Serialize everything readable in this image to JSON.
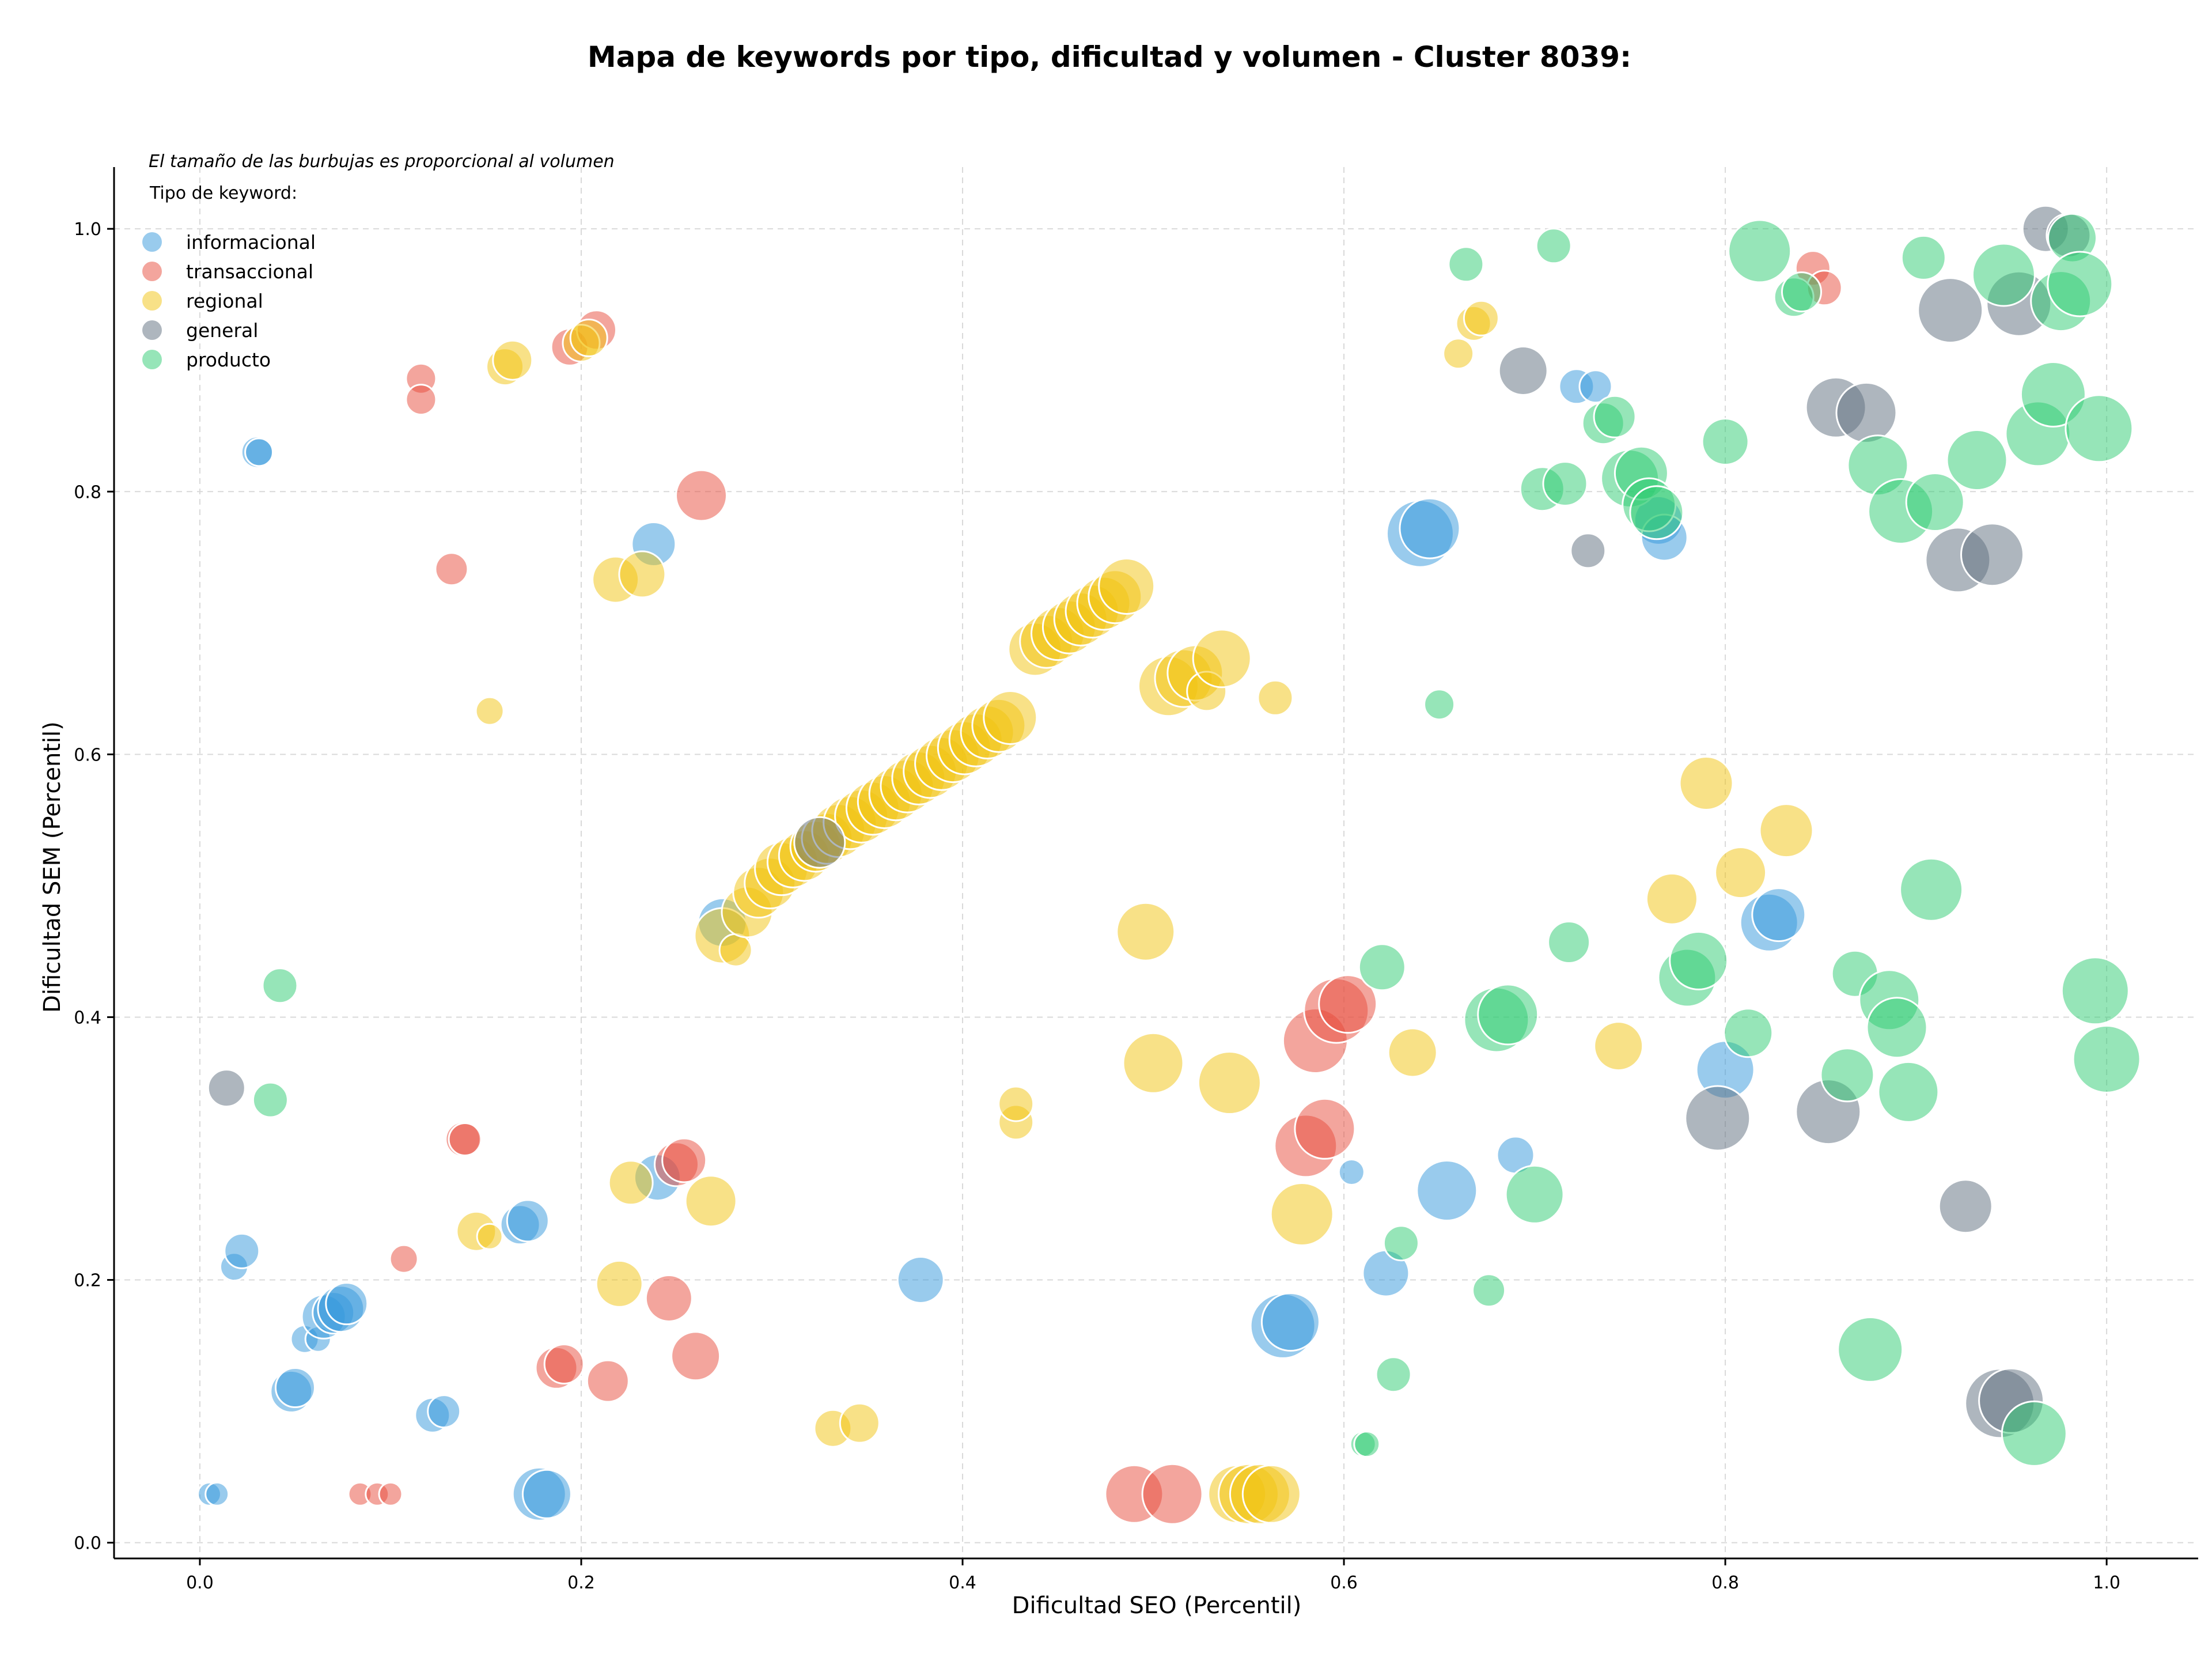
{
  "chart_data": {
    "type": "scatter",
    "title": "Mapa de keywords por tipo, dificultad y volumen - Cluster 8039:",
    "xlabel": "Dificultad SEO (Percentil)",
    "ylabel": "Dificultad SEM (Percentil)",
    "xlim": [
      -0.045,
      1.048
    ],
    "ylim": [
      -0.012,
      1.047
    ],
    "xticks": [
      "0.0",
      "0.2",
      "0.4",
      "0.6",
      "0.8",
      "1.0"
    ],
    "yticks": [
      "0.0",
      "0.2",
      "0.4",
      "0.6",
      "0.8",
      "1.0"
    ],
    "grid": true,
    "annotation": "El tamaño de las burbujas es proporcional al volumen",
    "legend_title": "Tipo de keyword:",
    "legend_position": "top-left",
    "series": [
      {
        "name": "informacional",
        "color": "#3498db",
        "points": [
          [
            0.005,
            0.037,
            20
          ],
          [
            0.009,
            0.037,
            20
          ],
          [
            0.018,
            0.21,
            24
          ],
          [
            0.022,
            0.222,
            30
          ],
          [
            0.03,
            0.83,
            27
          ],
          [
            0.031,
            0.83,
            24
          ],
          [
            0.048,
            0.115,
            36
          ],
          [
            0.05,
            0.118,
            34
          ],
          [
            0.055,
            0.155,
            24
          ],
          [
            0.062,
            0.155,
            22
          ],
          [
            0.065,
            0.172,
            38
          ],
          [
            0.07,
            0.175,
            36
          ],
          [
            0.074,
            0.178,
            40
          ],
          [
            0.077,
            0.182,
            36
          ],
          [
            0.122,
            0.097,
            30
          ],
          [
            0.128,
            0.1,
            28
          ],
          [
            0.168,
            0.242,
            34
          ],
          [
            0.172,
            0.245,
            36
          ],
          [
            0.178,
            0.037,
            46
          ],
          [
            0.182,
            0.037,
            42
          ],
          [
            0.238,
            0.76,
            38
          ],
          [
            0.24,
            0.278,
            40
          ],
          [
            0.274,
            0.472,
            42
          ],
          [
            0.378,
            0.2,
            40
          ],
          [
            0.568,
            0.165,
            56
          ],
          [
            0.572,
            0.168,
            50
          ],
          [
            0.604,
            0.282,
            22
          ],
          [
            0.622,
            0.205,
            40
          ],
          [
            0.654,
            0.268,
            52
          ],
          [
            0.64,
            0.768,
            58
          ],
          [
            0.645,
            0.772,
            52
          ],
          [
            0.69,
            0.295,
            32
          ],
          [
            0.722,
            0.88,
            30
          ],
          [
            0.732,
            0.88,
            28
          ],
          [
            0.765,
            0.778,
            42
          ],
          [
            0.768,
            0.765,
            40
          ],
          [
            0.8,
            0.36,
            50
          ],
          [
            0.823,
            0.472,
            50
          ],
          [
            0.828,
            0.478,
            46
          ]
        ]
      },
      {
        "name": "transaccional",
        "color": "#e74c3c",
        "points": [
          [
            0.084,
            0.037,
            20
          ],
          [
            0.093,
            0.037,
            20
          ],
          [
            0.1,
            0.037,
            20
          ],
          [
            0.107,
            0.216,
            24
          ],
          [
            0.116,
            0.886,
            26
          ],
          [
            0.116,
            0.87,
            26
          ],
          [
            0.132,
            0.741,
            28
          ],
          [
            0.138,
            0.307,
            30
          ],
          [
            0.139,
            0.307,
            28
          ],
          [
            0.187,
            0.133,
            36
          ],
          [
            0.191,
            0.136,
            34
          ],
          [
            0.194,
            0.91,
            32
          ],
          [
            0.208,
            0.923,
            34
          ],
          [
            0.214,
            0.123,
            36
          ],
          [
            0.246,
            0.186,
            40
          ],
          [
            0.25,
            0.288,
            38
          ],
          [
            0.254,
            0.291,
            38
          ],
          [
            0.26,
            0.142,
            42
          ],
          [
            0.263,
            0.797,
            44
          ],
          [
            0.49,
            0.037,
            50
          ],
          [
            0.51,
            0.037,
            52
          ],
          [
            0.58,
            0.302,
            54
          ],
          [
            0.585,
            0.382,
            56
          ],
          [
            0.59,
            0.315,
            52
          ],
          [
            0.596,
            0.405,
            56
          ],
          [
            0.602,
            0.41,
            50
          ],
          [
            0.846,
            0.97,
            30
          ],
          [
            0.852,
            0.955,
            30
          ]
        ]
      },
      {
        "name": "regional",
        "color": "#f1c40f",
        "points": [
          [
            0.145,
            0.237,
            34
          ],
          [
            0.152,
            0.233,
            22
          ],
          [
            0.152,
            0.633,
            24
          ],
          [
            0.16,
            0.895,
            32
          ],
          [
            0.164,
            0.9,
            34
          ],
          [
            0.2,
            0.913,
            32
          ],
          [
            0.204,
            0.917,
            32
          ],
          [
            0.22,
            0.197,
            40
          ],
          [
            0.218,
            0.733,
            40
          ],
          [
            0.226,
            0.274,
            38
          ],
          [
            0.232,
            0.737,
            40
          ],
          [
            0.268,
            0.26,
            44
          ],
          [
            0.274,
            0.462,
            48
          ],
          [
            0.281,
            0.451,
            28
          ],
          [
            0.287,
            0.48,
            44
          ],
          [
            0.293,
            0.495,
            44
          ],
          [
            0.299,
            0.502,
            44
          ],
          [
            0.305,
            0.513,
            46
          ],
          [
            0.311,
            0.518,
            44
          ],
          [
            0.317,
            0.523,
            44
          ],
          [
            0.323,
            0.53,
            44
          ],
          [
            0.329,
            0.536,
            44
          ],
          [
            0.335,
            0.542,
            46
          ],
          [
            0.341,
            0.548,
            46
          ],
          [
            0.347,
            0.553,
            46
          ],
          [
            0.353,
            0.559,
            46
          ],
          [
            0.359,
            0.564,
            46
          ],
          [
            0.365,
            0.57,
            46
          ],
          [
            0.371,
            0.576,
            46
          ],
          [
            0.377,
            0.582,
            46
          ],
          [
            0.383,
            0.587,
            46
          ],
          [
            0.389,
            0.593,
            46
          ],
          [
            0.395,
            0.599,
            46
          ],
          [
            0.401,
            0.605,
            46
          ],
          [
            0.407,
            0.611,
            46
          ],
          [
            0.413,
            0.617,
            46
          ],
          [
            0.419,
            0.622,
            46
          ],
          [
            0.425,
            0.628,
            46
          ],
          [
            0.332,
            0.087,
            32
          ],
          [
            0.346,
            0.091,
            34
          ],
          [
            0.428,
            0.32,
            30
          ],
          [
            0.428,
            0.334,
            30
          ],
          [
            0.438,
            0.68,
            46
          ],
          [
            0.444,
            0.686,
            46
          ],
          [
            0.45,
            0.692,
            46
          ],
          [
            0.456,
            0.697,
            46
          ],
          [
            0.462,
            0.703,
            46
          ],
          [
            0.468,
            0.709,
            46
          ],
          [
            0.474,
            0.715,
            46
          ],
          [
            0.48,
            0.72,
            46
          ],
          [
            0.486,
            0.728,
            48
          ],
          [
            0.496,
            0.465,
            50
          ],
          [
            0.5,
            0.365,
            52
          ],
          [
            0.508,
            0.652,
            52
          ],
          [
            0.516,
            0.658,
            50
          ],
          [
            0.522,
            0.662,
            48
          ],
          [
            0.528,
            0.648,
            34
          ],
          [
            0.536,
            0.673,
            50
          ],
          [
            0.54,
            0.35,
            54
          ],
          [
            0.544,
            0.037,
            50
          ],
          [
            0.55,
            0.037,
            52
          ],
          [
            0.556,
            0.037,
            52
          ],
          [
            0.562,
            0.037,
            50
          ],
          [
            0.564,
            0.643,
            30
          ],
          [
            0.578,
            0.25,
            54
          ],
          [
            0.636,
            0.373,
            42
          ],
          [
            0.66,
            0.905,
            26
          ],
          [
            0.668,
            0.928,
            30
          ],
          [
            0.672,
            0.932,
            30
          ],
          [
            0.744,
            0.378,
            42
          ],
          [
            0.772,
            0.49,
            44
          ],
          [
            0.79,
            0.578,
            46
          ],
          [
            0.808,
            0.51,
            44
          ],
          [
            0.832,
            0.542,
            46
          ]
        ]
      },
      {
        "name": "general",
        "color": "#5d6d7e",
        "points": [
          [
            0.014,
            0.346,
            32
          ],
          [
            0.325,
            0.533,
            44
          ],
          [
            0.694,
            0.892,
            42
          ],
          [
            0.728,
            0.755,
            30
          ],
          [
            0.796,
            0.323,
            56
          ],
          [
            0.854,
            0.328,
            56
          ],
          [
            0.858,
            0.864,
            52
          ],
          [
            0.874,
            0.86,
            52
          ],
          [
            0.918,
            0.938,
            56
          ],
          [
            0.922,
            0.748,
            56
          ],
          [
            0.926,
            0.256,
            46
          ],
          [
            0.94,
            0.752,
            54
          ],
          [
            0.944,
            0.106,
            60
          ],
          [
            0.95,
            0.108,
            56
          ],
          [
            0.954,
            0.943,
            56
          ],
          [
            0.968,
            1.0,
            40
          ],
          [
            0.98,
            0.995,
            38
          ]
        ]
      },
      {
        "name": "producto",
        "color": "#2ecc71",
        "points": [
          [
            0.037,
            0.337,
            30
          ],
          [
            0.042,
            0.424,
            30
          ],
          [
            0.61,
            0.075,
            22
          ],
          [
            0.612,
            0.075,
            22
          ],
          [
            0.62,
            0.438,
            40
          ],
          [
            0.626,
            0.128,
            30
          ],
          [
            0.63,
            0.228,
            30
          ],
          [
            0.65,
            0.638,
            26
          ],
          [
            0.664,
            0.973,
            30
          ],
          [
            0.676,
            0.192,
            28
          ],
          [
            0.68,
            0.398,
            56
          ],
          [
            0.686,
            0.402,
            52
          ],
          [
            0.7,
            0.265,
            50
          ],
          [
            0.704,
            0.802,
            38
          ],
          [
            0.71,
            0.987,
            30
          ],
          [
            0.716,
            0.806,
            38
          ],
          [
            0.718,
            0.457,
            36
          ],
          [
            0.736,
            0.852,
            36
          ],
          [
            0.742,
            0.857,
            36
          ],
          [
            0.75,
            0.81,
            50
          ],
          [
            0.756,
            0.814,
            46
          ],
          [
            0.76,
            0.79,
            46
          ],
          [
            0.764,
            0.784,
            46
          ],
          [
            0.78,
            0.43,
            50
          ],
          [
            0.786,
            0.443,
            50
          ],
          [
            0.8,
            0.838,
            40
          ],
          [
            0.812,
            0.388,
            42
          ],
          [
            0.818,
            0.983,
            54
          ],
          [
            0.836,
            0.948,
            34
          ],
          [
            0.84,
            0.952,
            34
          ],
          [
            0.868,
            0.433,
            40
          ],
          [
            0.864,
            0.356,
            46
          ],
          [
            0.876,
            0.147,
            56
          ],
          [
            0.88,
            0.82,
            52
          ],
          [
            0.886,
            0.413,
            52
          ],
          [
            0.89,
            0.392,
            52
          ],
          [
            0.892,
            0.785,
            56
          ],
          [
            0.896,
            0.343,
            52
          ],
          [
            0.904,
            0.978,
            38
          ],
          [
            0.908,
            0.497,
            54
          ],
          [
            0.91,
            0.792,
            50
          ],
          [
            0.932,
            0.824,
            52
          ],
          [
            0.946,
            0.965,
            54
          ],
          [
            0.962,
            0.083,
            56
          ],
          [
            0.964,
            0.844,
            56
          ],
          [
            0.972,
            0.874,
            56
          ],
          [
            0.976,
            0.945,
            52
          ],
          [
            0.982,
            0.993,
            42
          ],
          [
            0.986,
            0.958,
            56
          ],
          [
            0.994,
            0.42,
            58
          ],
          [
            0.996,
            0.848,
            58
          ],
          [
            1.0,
            0.368,
            58
          ]
        ]
      }
    ]
  }
}
